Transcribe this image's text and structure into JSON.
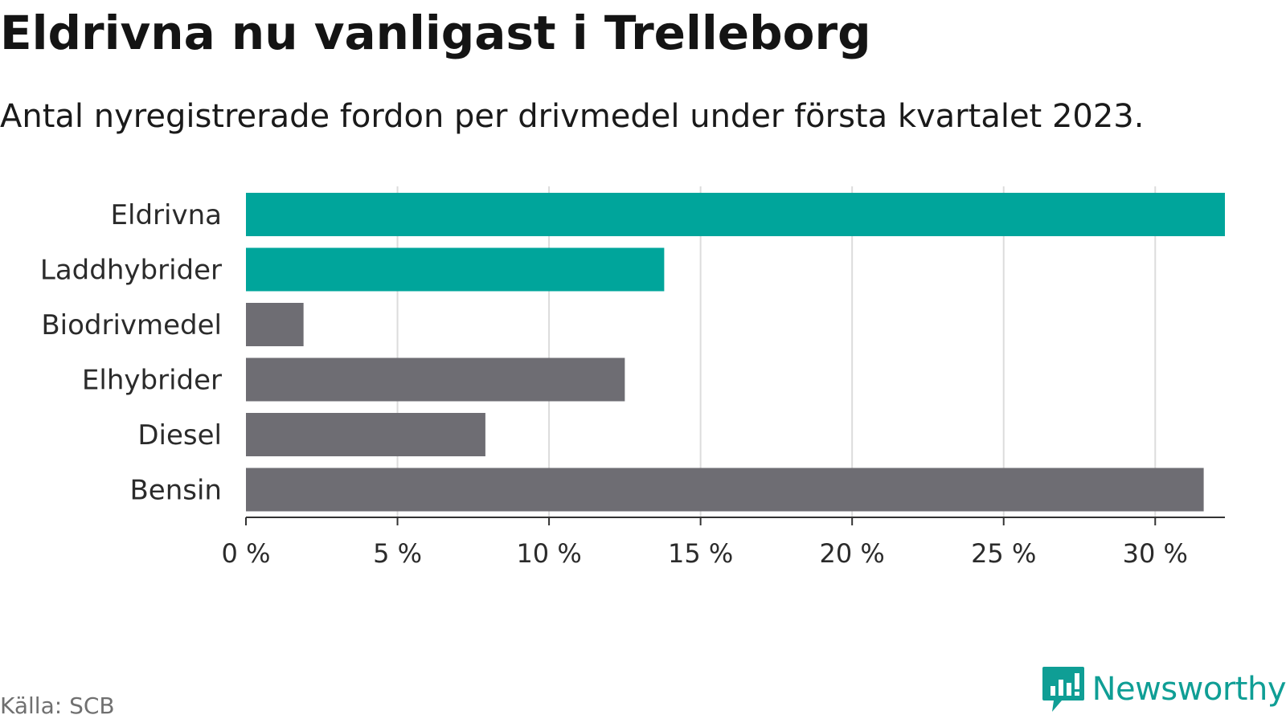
{
  "header": {
    "title": "Eldrivna nu vanligast i Trelleborg",
    "subtitle": "Antal nyregistrerade fordon per drivmedel under första kvartalet 2023."
  },
  "footer": {
    "source": "Källa: SCB",
    "brand": "Newsworthy",
    "brand_icon": "newsworthy-logo-icon",
    "brand_color": "#0f9e95"
  },
  "chart_data": {
    "type": "bar",
    "orientation": "horizontal",
    "title": "Eldrivna nu vanligast i Trelleborg",
    "subtitle": "Antal nyregistrerade fordon per drivmedel under första kvartalet 2023.",
    "categories": [
      "Eldrivna",
      "Laddhybrider",
      "Biodrivmedel",
      "Elhybrider",
      "Diesel",
      "Bensin"
    ],
    "values": [
      32.3,
      13.8,
      1.9,
      12.5,
      7.9,
      31.6
    ],
    "bar_colors": [
      "#00a59b",
      "#00a59b",
      "#6e6d73",
      "#6e6d73",
      "#6e6d73",
      "#6e6d73"
    ],
    "unit": "%",
    "xlim": [
      0,
      32.3
    ],
    "xticks": [
      0,
      5,
      10,
      15,
      20,
      25,
      30
    ],
    "xtick_labels": [
      "0 %",
      "5 %",
      "10 %",
      "15 %",
      "20 %",
      "25 %",
      "30 %"
    ],
    "grid": true,
    "legend": false,
    "xlabel": "",
    "ylabel": ""
  }
}
